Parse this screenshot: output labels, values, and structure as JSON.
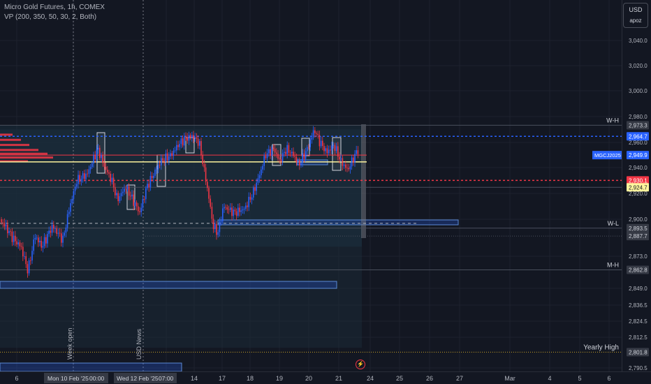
{
  "legend": {
    "symbol_line": "Micro Gold Futures, 1h, COMEX",
    "indicator_line": "VP (200, 350, 50, 30, 2, Both)"
  },
  "price_axis": {
    "currency": "USD",
    "unit": "apoz",
    "ticks": [
      "3,040.0",
      "3,020.0",
      "3,000.0",
      "2,980.0",
      "2,960.0",
      "2,940.0",
      "2,920.0",
      "2,900.0",
      "2,873.0",
      "2,849.0",
      "2,836.5",
      "2,824.5",
      "2,812.5",
      "2,790.5"
    ],
    "range": [
      2788,
      3055
    ]
  },
  "time_axis": {
    "ticks": [
      "6",
      "14",
      "17",
      "18",
      "19",
      "20",
      "21",
      "24",
      "25",
      "26",
      "27",
      "Mar",
      "4",
      "5",
      "6"
    ],
    "cursor_labels": [
      "Mon 10 Feb '25",
      "00:00",
      "Wed 12 Feb '25",
      "07:00"
    ]
  },
  "levels": [
    {
      "name": "W-H",
      "price": "2,973.3",
      "value": 2973.3
    },
    {
      "name": "",
      "price": "2,964.7",
      "value": 2964.7,
      "color": "#2962ff"
    },
    {
      "name": "MGCJ2025",
      "price": "2,949.9",
      "value": 2949.9,
      "color": "#2962ff"
    },
    {
      "name": "",
      "price": "2,930.1",
      "value": 2930.1,
      "color": "#f23645"
    },
    {
      "name": "",
      "price": "2,924.7",
      "value": 2924.7,
      "color": "#fff59d"
    },
    {
      "name": "W-L",
      "price": "2,893.5",
      "value": 2893.5
    },
    {
      "name": "",
      "price": "2,887.7",
      "value": 2887.7
    },
    {
      "name": "M-H",
      "price": "2,862.8",
      "value": 2862.8
    },
    {
      "name": "Yearly High",
      "price": "2,801.8",
      "value": 2801.8
    }
  ],
  "vertical_notes": [
    "Week open",
    "USD News"
  ],
  "colors": {
    "up": "#2962ff",
    "down": "#f23645",
    "bg": "#131722",
    "grid": "#1e222d",
    "poc": "#fff59d"
  }
}
